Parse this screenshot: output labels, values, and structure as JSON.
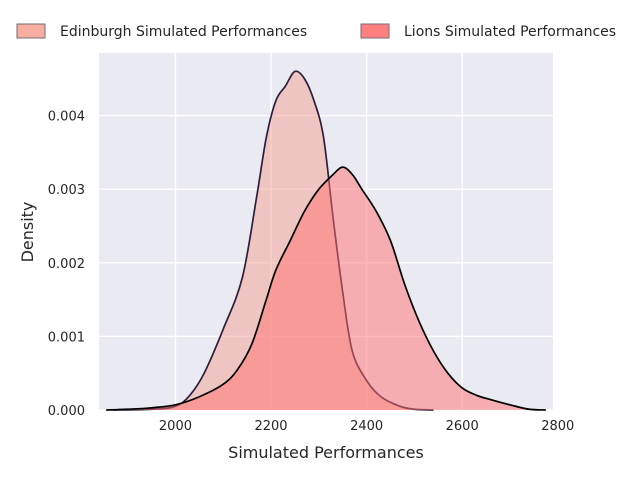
{
  "chart_data": {
    "type": "area",
    "title": "",
    "xlabel": "Simulated Performances",
    "ylabel": "Density",
    "xlim": [
      1840,
      2790
    ],
    "ylim": [
      0,
      0.00485
    ],
    "xticks": [
      2000,
      2200,
      2400,
      2600,
      2800
    ],
    "xtick_labels": [
      "2000",
      "2200",
      "2400",
      "2600",
      "2800"
    ],
    "yticks": [
      0,
      0.001,
      0.002,
      0.003,
      0.004
    ],
    "ytick_labels": [
      "0.000",
      "0.001",
      "0.002",
      "0.003",
      "0.004"
    ],
    "grid": true,
    "background_color": "#eaeaf2",
    "legend_position": "top",
    "series": [
      {
        "name": "Edinburgh Simulated Performances",
        "fill_color": "#f4a090",
        "line_color": "#2d1e3e",
        "x": [
          1870,
          1950,
          2000,
          2030,
          2060,
          2100,
          2140,
          2170,
          2190,
          2210,
          2230,
          2250,
          2270,
          2290,
          2310,
          2330,
          2350,
          2370,
          2400,
          2430,
          2470,
          2500,
          2540
        ],
        "y": [
          0,
          1e-05,
          5e-05,
          0.0002,
          0.0005,
          0.0011,
          0.0018,
          0.0029,
          0.0037,
          0.0042,
          0.0044,
          0.0046,
          0.0045,
          0.0042,
          0.0037,
          0.0026,
          0.0016,
          0.0008,
          0.0004,
          0.00018,
          5e-05,
          1e-05,
          0
        ]
      },
      {
        "name": "Lions Simulated Performances",
        "fill_color": "#ff7070",
        "line_color": "#000000",
        "x": [
          1855,
          1900,
          1950,
          2000,
          2050,
          2100,
          2130,
          2160,
          2190,
          2210,
          2240,
          2270,
          2300,
          2330,
          2350,
          2370,
          2390,
          2420,
          2450,
          2480,
          2510,
          2540,
          2570,
          2600,
          2630,
          2660,
          2700,
          2740,
          2775
        ],
        "y": [
          0,
          1e-05,
          3e-05,
          7e-05,
          0.00018,
          0.00035,
          0.00055,
          0.0009,
          0.0015,
          0.0019,
          0.0023,
          0.0027,
          0.003,
          0.0032,
          0.0033,
          0.0032,
          0.003,
          0.0027,
          0.0023,
          0.0017,
          0.0012,
          0.0008,
          0.0005,
          0.0003,
          0.0002,
          0.00014,
          7e-05,
          1e-05,
          0
        ]
      }
    ]
  }
}
